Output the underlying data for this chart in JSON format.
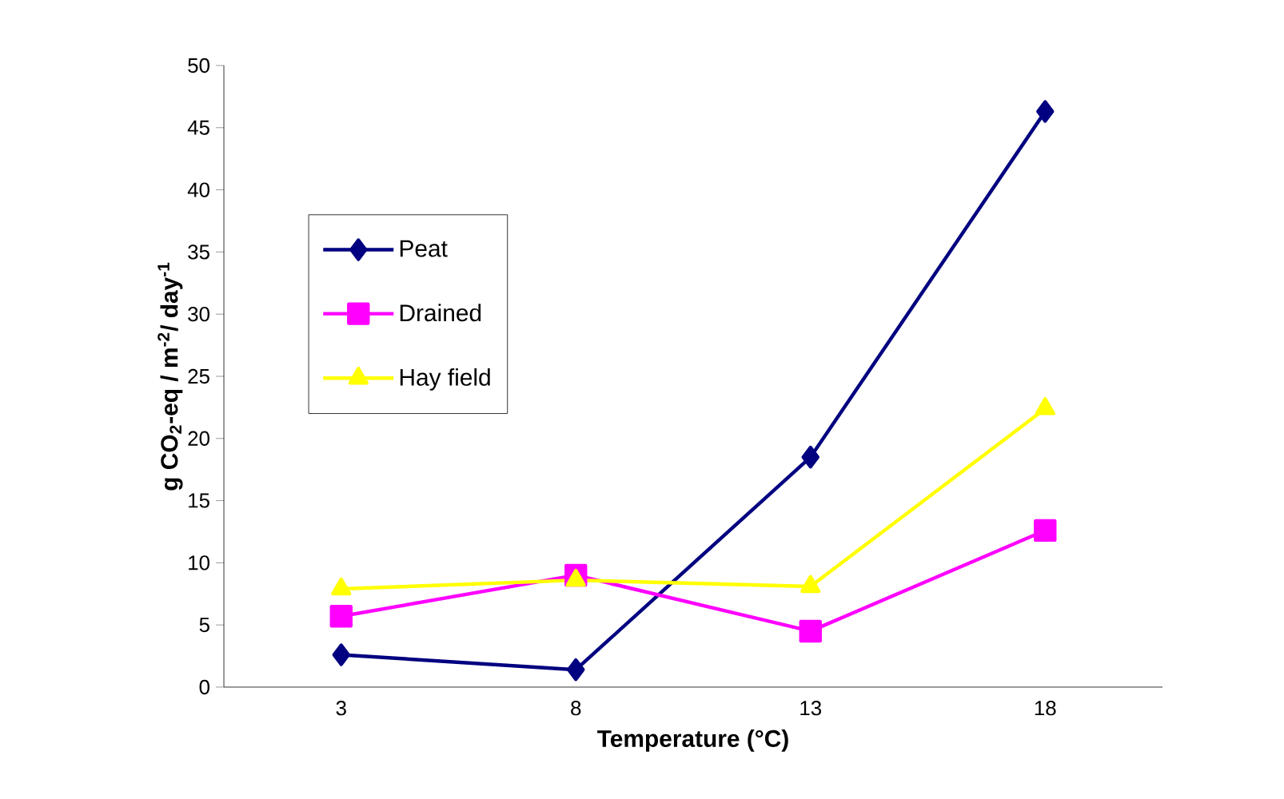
{
  "chart_data": {
    "type": "line",
    "xlabel": "Temperature (°C)",
    "ylabel": "g CO$_{2}$-eq / m$^{-2}$/ day$^{-1}$",
    "categories": [
      "3",
      "8",
      "13",
      "18"
    ],
    "series": [
      {
        "name": "Peat",
        "color": "#000080",
        "marker": "diamond",
        "values": [
          2.6,
          1.4,
          18.5,
          46.3
        ]
      },
      {
        "name": "Drained",
        "color": "#ff00ff",
        "marker": "square",
        "values": [
          5.7,
          9.0,
          4.5,
          12.6
        ]
      },
      {
        "name": "Hay field",
        "color": "#ffff00",
        "marker": "triangle",
        "values": [
          7.9,
          8.6,
          8.1,
          22.4
        ]
      }
    ],
    "ylim": [
      0,
      50
    ],
    "yticks": [
      0,
      5,
      10,
      15,
      20,
      25,
      30,
      35,
      40,
      45,
      50
    ],
    "grid": false,
    "legend": "left",
    "line_style": "solid"
  }
}
